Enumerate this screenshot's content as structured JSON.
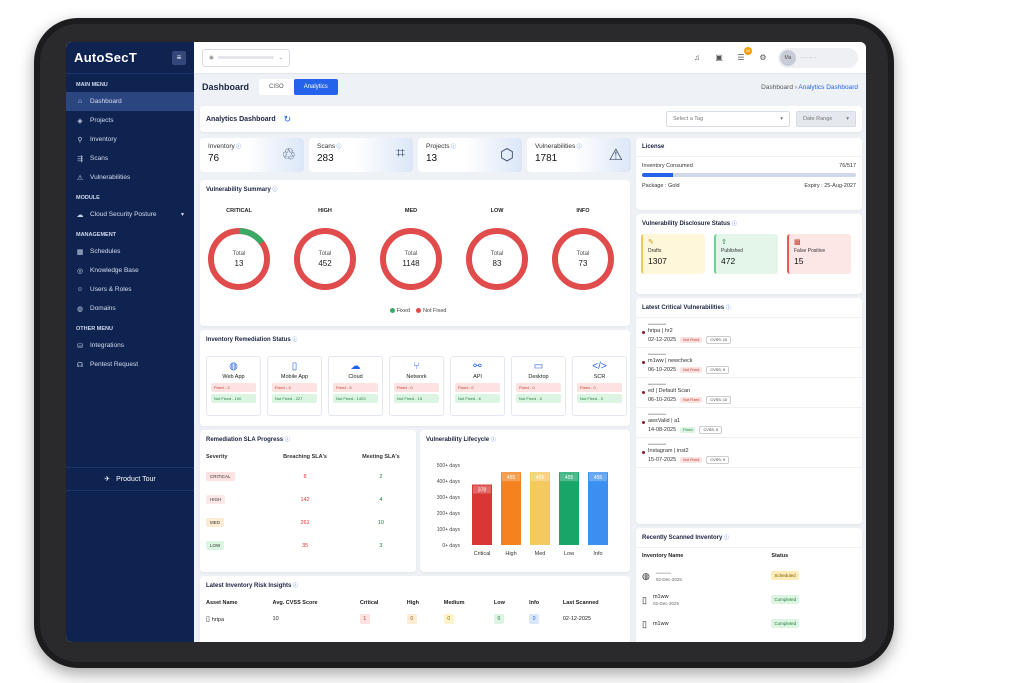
{
  "app": {
    "logo": "AutoSecT"
  },
  "sidebar": {
    "main_menu": "MAIN MENU",
    "main": [
      {
        "label": "Dashboard",
        "icon": "home-icon"
      },
      {
        "label": "Projects",
        "icon": "projects-icon"
      },
      {
        "label": "Inventory",
        "icon": "inventory-icon"
      },
      {
        "label": "Scans",
        "icon": "scans-icon"
      },
      {
        "label": "Vulnerabilities",
        "icon": "warning-icon"
      }
    ],
    "module": "MODULE",
    "module_items": [
      {
        "label": "Cloud Security Posture",
        "icon": "cloud-icon"
      }
    ],
    "management": "MANAGEMENT",
    "management_items": [
      {
        "label": "Schedules",
        "icon": "calendar-icon"
      },
      {
        "label": "Knowledge Base",
        "icon": "book-icon"
      },
      {
        "label": "Users & Roles",
        "icon": "users-icon"
      },
      {
        "label": "Domains",
        "icon": "globe-icon"
      }
    ],
    "other_menu": "OTHER MENU",
    "other_items": [
      {
        "label": "Integrations",
        "icon": "integrations-icon"
      },
      {
        "label": "Pentest Request",
        "icon": "headset-icon"
      }
    ],
    "product_tour": "Product Tour"
  },
  "topbar": {
    "notif_count": "16",
    "avatar": "Ma"
  },
  "header": {
    "title": "Dashboard",
    "tabs": [
      "CISO",
      "Analytics"
    ],
    "crumb_root": "Dashboard",
    "crumb_current": "Analytics Dashboard"
  },
  "analytics": {
    "title": "Analytics Dashboard",
    "tag_placeholder": "Select a Tag",
    "date_range": "Date Range"
  },
  "stats": [
    {
      "label": "Inventory",
      "value": "76"
    },
    {
      "label": "Scans",
      "value": "283"
    },
    {
      "label": "Projects",
      "value": "13"
    },
    {
      "label": "Vulnerabilities",
      "value": "1781"
    }
  ],
  "summary": {
    "title": "Vulnerability Summary",
    "total_label": "Total",
    "items": [
      {
        "label": "CRITICAL",
        "total": 13,
        "fixed_fraction": 0.15
      },
      {
        "label": "HIGH",
        "total": 452,
        "fixed_fraction": 0
      },
      {
        "label": "MED",
        "total": 1148,
        "fixed_fraction": 0
      },
      {
        "label": "LOW",
        "total": 83,
        "fixed_fraction": 0
      },
      {
        "label": "INFO",
        "total": 73,
        "fixed_fraction": 0
      }
    ],
    "legend": [
      "Fixed",
      "Not Fixed"
    ],
    "colors": {
      "fixed": "#3ba966",
      "not_fixed": "#e04c4c"
    }
  },
  "remediation": {
    "title": "Inventory Remediation Status",
    "items": [
      {
        "label": "Web App",
        "icon": "globe-icon",
        "fixed": "Fixed - 2",
        "notfixed": "Not Fixed - 100"
      },
      {
        "label": "Mobile App",
        "icon": "mobile-icon",
        "fixed": "Fixed - 3",
        "notfixed": "Not Fixed - 227"
      },
      {
        "label": "Cloud",
        "icon": "cloud-icon",
        "fixed": "Fixed - 5",
        "notfixed": "Not Fixed - 1403"
      },
      {
        "label": "Network",
        "icon": "network-icon",
        "fixed": "Fixed - 0",
        "notfixed": "Not Fixed - 15"
      },
      {
        "label": "API",
        "icon": "api-icon",
        "fixed": "Fixed - 0",
        "notfixed": "Not Fixed - 6"
      },
      {
        "label": "Desktop",
        "icon": "desktop-icon",
        "fixed": "Fixed - 0",
        "notfixed": "Not Fixed - 5"
      },
      {
        "label": "SCR",
        "icon": "code-icon",
        "fixed": "Fixed - 0",
        "notfixed": "Not Fixed - 3"
      }
    ]
  },
  "sla": {
    "title": "Remediation SLA Progress",
    "cols": [
      "Severity",
      "Breaching SLA's",
      "Meeting SLA's"
    ],
    "rows": [
      {
        "sev": "CRITICAL",
        "b": "8",
        "m": "2"
      },
      {
        "sev": "HIGH",
        "b": "142",
        "m": "4"
      },
      {
        "sev": "MED",
        "b": "261",
        "m": "10"
      },
      {
        "sev": "LOW",
        "b": "35",
        "m": "3"
      }
    ]
  },
  "chart_data": {
    "type": "bar",
    "title": "Vulnerability Lifecycle",
    "categories": [
      "Critical",
      "High",
      "Med",
      "Low",
      "Info"
    ],
    "values": [
      378,
      455,
      455,
      455,
      455
    ],
    "y_ticks": [
      "0+ days",
      "100+ days",
      "200+ days",
      "300+ days",
      "400+ days",
      "500+ days"
    ],
    "ylim": [
      0,
      500
    ],
    "colors": [
      "#d93636",
      "#f5821f",
      "#f4c95d",
      "#18a567",
      "#3b8ff0"
    ]
  },
  "risk": {
    "title": "Latest Inventory Risk Insights",
    "cols": [
      "Asset Name",
      "Avg. CVSS Score",
      "Critical",
      "High",
      "Medium",
      "Low",
      "Info",
      "Last Scanned"
    ],
    "rows": [
      {
        "name": "hripa",
        "score": "10",
        "c": "1",
        "h": "0",
        "m": "0",
        "l": "0",
        "i": "0",
        "date": "02-12-2025"
      }
    ]
  },
  "license": {
    "title": "License",
    "inv_label": "Inventory Consumed",
    "inv_value": "76/517",
    "inv_fraction": 0.147,
    "package": "Package : Gold",
    "expiry": "Expiry : 25-Aug-2027"
  },
  "disclosure": {
    "title": "Vulnerability Disclosure Status",
    "items": [
      {
        "label": "Drafts",
        "value": "1307",
        "icon": "edit-icon"
      },
      {
        "label": "Published",
        "value": "472",
        "icon": "publish-icon"
      },
      {
        "label": "False Positive",
        "value": "15",
        "icon": "qr-icon"
      }
    ]
  },
  "critical": {
    "title": "Latest Critical Vulnerabilities",
    "items": [
      {
        "asset": "hripa | hr2",
        "date": "02-12-2025",
        "status": "Not Fixed",
        "cvss": "CVSS: 10"
      },
      {
        "asset": "m1ww | newcheck",
        "date": "06-10-2025",
        "status": "Not Fixed",
        "cvss": "CVSS: 9"
      },
      {
        "asset": "ed | Default Scan",
        "date": "06-10-2025",
        "status": "Not Fixed",
        "cvss": "CVSS: 10"
      },
      {
        "asset": "awsValid | a1",
        "date": "14-08-2025",
        "status": "Fixed",
        "cvss": "CVSS: 9"
      },
      {
        "asset": "Instagram | inst2",
        "date": "15-07-2025",
        "status": "Not Fixed",
        "cvss": "CVSS: 9"
      }
    ]
  },
  "recent": {
    "title": "Recently Scanned Inventory",
    "cols": [
      "Inventory Name",
      "Status"
    ],
    "rows": [
      {
        "name": "",
        "date": "02-Dec-2025",
        "status": "Scheduled",
        "icon": "globe-icon"
      },
      {
        "name": "m1ww",
        "date": "02-Dec-2025",
        "status": "Completed",
        "icon": "mobile-icon"
      },
      {
        "name": "m1ww",
        "date": "",
        "status": "Completed",
        "icon": "mobile-icon"
      }
    ]
  }
}
